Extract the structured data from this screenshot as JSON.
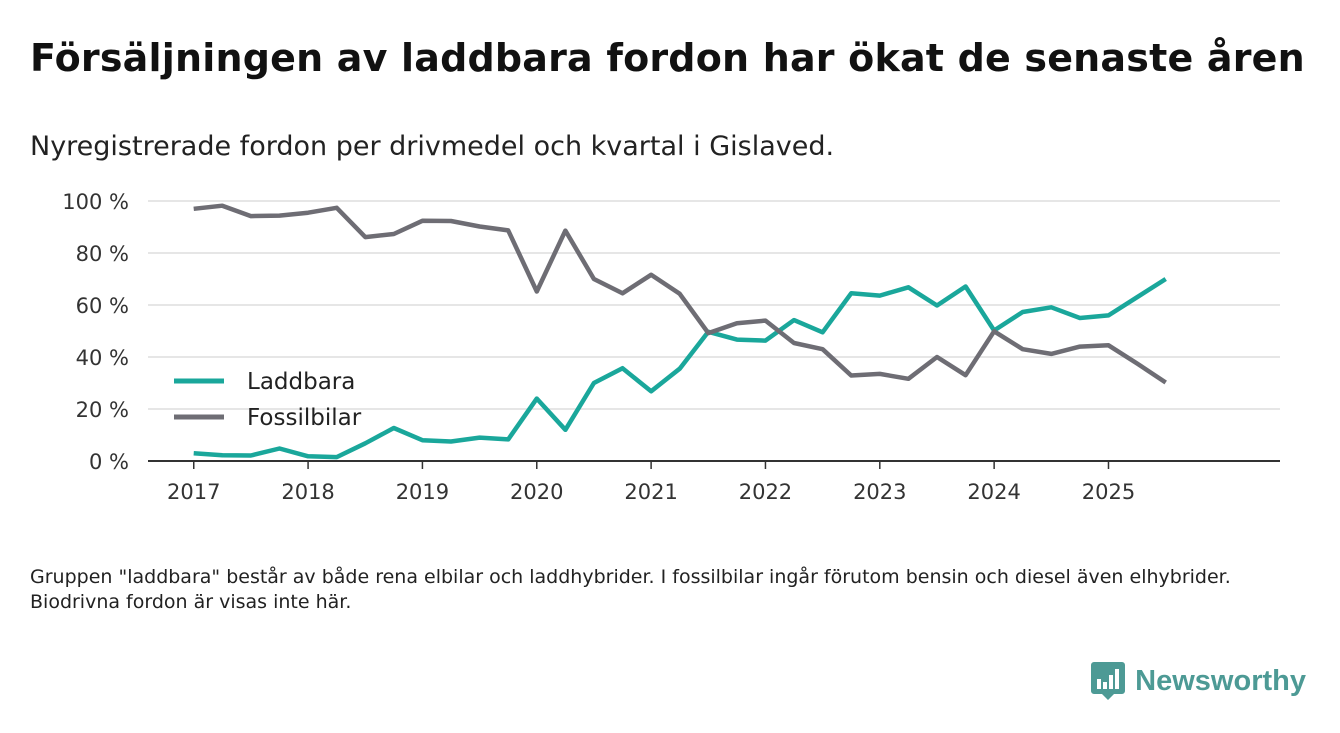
{
  "header": {
    "title": "Försäljningen av laddbara fordon har ökat de senaste åren",
    "subtitle": "Nyregistrerade fordon per drivmedel och kvartal i Gislaved."
  },
  "footnote": "Gruppen \"laddbara\" består av både rena elbilar och laddhybrider. I fossilbilar ingår förutom bensin och diesel även elhybrider. Biodrivna fordon är visas inte här.",
  "brand": {
    "name": "Newsworthy",
    "icon": "bar-chart-icon",
    "color": "#4d9a95"
  },
  "chart_data": {
    "type": "line",
    "title": "Försäljningen av laddbara fordon har ökat de senaste åren",
    "subtitle": "Nyregistrerade fordon per drivmedel och kvartal i Gislaved.",
    "xlabel": "",
    "ylabel": "",
    "x_start": 2017.0,
    "x_step": 0.25,
    "xlim": [
      2016.6,
      2026.5
    ],
    "ylim": [
      0,
      100
    ],
    "x_ticks": [
      2017,
      2018,
      2019,
      2020,
      2021,
      2022,
      2023,
      2024,
      2025
    ],
    "x_tick_labels": [
      "2017",
      "2018",
      "2019",
      "2020",
      "2021",
      "2022",
      "2023",
      "2024",
      "2025"
    ],
    "y_ticks": [
      0,
      20,
      40,
      60,
      80,
      100
    ],
    "y_tick_labels": [
      "0 %",
      "20 %",
      "40 %",
      "60 %",
      "80 %",
      "100 %"
    ],
    "grid": true,
    "legend_position": "bottom-left",
    "series": [
      {
        "name": "Laddbara",
        "color": "#1aa79b",
        "values": [
          3,
          2.2,
          2.1,
          4.8,
          1.8,
          1.5,
          6.8,
          12.7,
          8,
          7.5,
          9,
          8.3,
          24,
          12,
          30,
          35.7,
          26.8,
          35.5,
          49.7,
          46.7,
          46.3,
          54.2,
          49.5,
          64.5,
          63.6,
          66.8,
          59.8,
          67.1,
          50.2,
          57.3,
          59.1,
          55,
          56,
          63,
          70
        ]
      },
      {
        "name": "Fossilbilar",
        "color": "#6e6d74",
        "values": [
          97,
          98.2,
          94.2,
          94.4,
          95.5,
          97.4,
          86.1,
          87.3,
          92.4,
          92.3,
          90.2,
          88.7,
          65.2,
          88.6,
          70,
          64.5,
          71.6,
          64.3,
          49.2,
          53,
          54,
          45.4,
          43,
          32.9,
          33.5,
          31.6,
          40,
          33,
          49.9,
          43,
          41.2,
          44,
          44.5,
          37.5,
          30.2
        ]
      }
    ]
  }
}
